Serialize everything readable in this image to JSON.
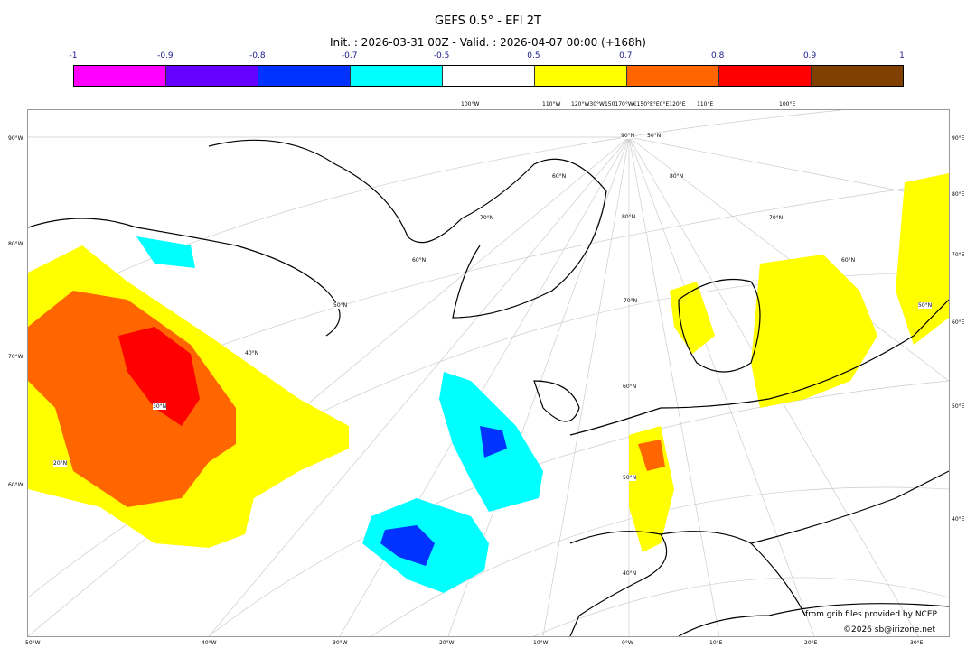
{
  "title": "GEFS 0.5° - EFI 2T",
  "subtitle": "Init. : 2026-03-31 00Z - Valid. : 2026-04-07 00:00 (+168h)",
  "colorbar": {
    "ticks": [
      "-1",
      "-0.9",
      "-0.8",
      "-0.7",
      "-0.5",
      "0.5",
      "0.7",
      "0.8",
      "0.9",
      "1"
    ],
    "colors": [
      "#ff00ff",
      "#6600ff",
      "#0033ff",
      "#00ffff",
      "#ffffff",
      "#ffff00",
      "#ff6600",
      "#ff0000",
      "#804000"
    ]
  },
  "axes": {
    "left": [
      "90°W",
      "80°W",
      "70°W",
      "60°W"
    ],
    "right": [
      "90°E",
      "80°E",
      "70°E",
      "60°E",
      "50°E",
      "40°E"
    ],
    "bottom": [
      "50°W",
      "40°W",
      "30°W",
      "20°W",
      "10°W",
      "0°W",
      "10°E",
      "20°E",
      "30°E"
    ],
    "top": [
      "100°W",
      "110°W",
      "120°W30°W150170°W€150°E°E0°E120°E",
      "110°E",
      "100°E"
    ]
  },
  "grid_labels": [
    "90°N",
    "80°N",
    "70°N",
    "60°N",
    "50°N",
    "40°N",
    "30°N",
    "20°N",
    "70°N",
    "60°N",
    "50°N",
    "40°N",
    "80°N",
    "70°N",
    "60°N",
    "50°N",
    "60°N",
    "50°N"
  ],
  "credits": {
    "source": "from grib files provided by NCEP",
    "copyright": "©2026 sb@irizone.net"
  }
}
